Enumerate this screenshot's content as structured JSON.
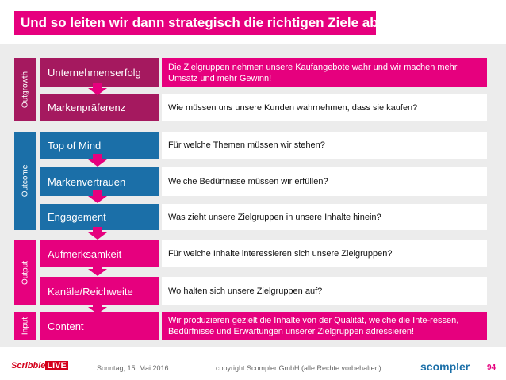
{
  "title": "Und so leiten wir dann strategisch die richtigen Ziele ab!",
  "colors": {
    "magenta": "#e6007e",
    "plum": "#a5195f",
    "blue": "#1b6fa8",
    "panel": "#ececec"
  },
  "sections": {
    "outgrowth": "Outgrowth",
    "outcome": "Outcome",
    "output": "Output",
    "input": "Input"
  },
  "rows": [
    {
      "label": "Unternehmenserfolg",
      "question": "Die Zielgruppen nehmen unsere Kaufangebote wahr und wir machen mehr Umsatz und mehr Gewinn!"
    },
    {
      "label": "Markenpräferenz",
      "question": "Wie müssen uns unsere Kunden wahrnehmen, dass sie kaufen?"
    },
    {
      "label": "Top of Mind",
      "question": "Für welche Themen müssen wir stehen?"
    },
    {
      "label": "Markenvertrauen",
      "question": "Welche Bedürfnisse müssen wir erfüllen?"
    },
    {
      "label": "Engagement",
      "question": "Was zieht unsere Zielgruppen in unsere Inhalte hinein?"
    },
    {
      "label": "Aufmerksamkeit",
      "question": "Für welche Inhalte interessieren sich unsere Zielgruppen?"
    },
    {
      "label": "Kanäle/Reichweite",
      "question": "Wo halten sich unsere Zielgruppen auf?"
    },
    {
      "label": "Content",
      "question": "Wir produzieren gezielt die Inhalte von der Qualität, welche die Inte-ressen, Bedürfnisse und Erwartungen unserer Zielgruppen adressieren!"
    }
  ],
  "footer": {
    "date": "Sonntag, 15. Mai 2016",
    "copyright": "copyright Scompler GmbH (alle Rechte vorbehalten)",
    "page": "94",
    "logo_left_text": "Scribble",
    "logo_left_badge": "LIVE",
    "logo_right": "scompler"
  }
}
